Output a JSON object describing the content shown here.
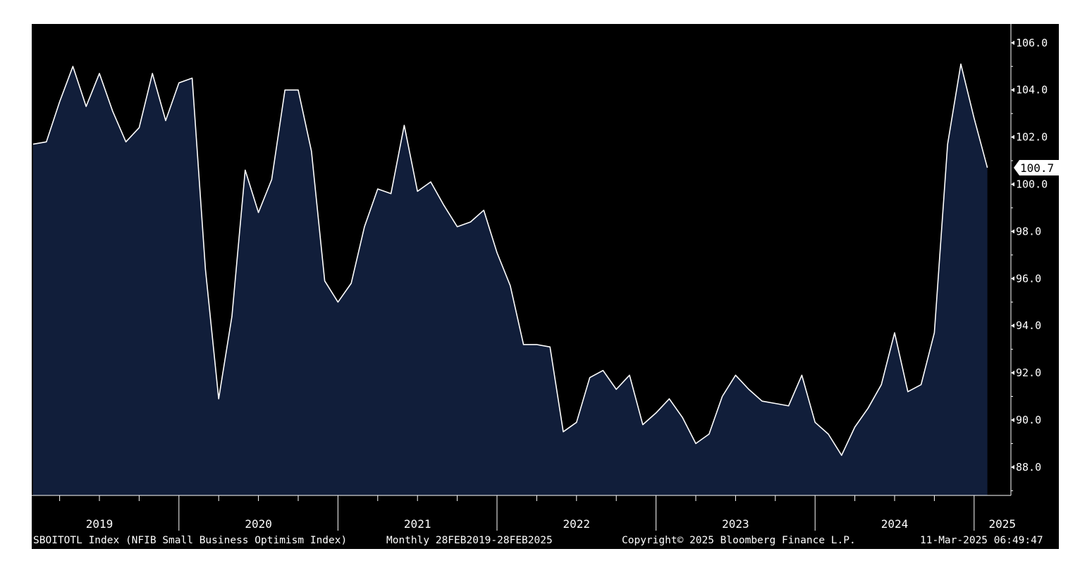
{
  "chart_data": {
    "type": "area",
    "x": [
      "2019-02",
      "2019-03",
      "2019-04",
      "2019-05",
      "2019-06",
      "2019-07",
      "2019-08",
      "2019-09",
      "2019-10",
      "2019-11",
      "2019-12",
      "2020-01",
      "2020-02",
      "2020-03",
      "2020-04",
      "2020-05",
      "2020-06",
      "2020-07",
      "2020-08",
      "2020-09",
      "2020-10",
      "2020-11",
      "2020-12",
      "2021-01",
      "2021-02",
      "2021-03",
      "2021-04",
      "2021-05",
      "2021-06",
      "2021-07",
      "2021-08",
      "2021-09",
      "2021-10",
      "2021-11",
      "2021-12",
      "2022-01",
      "2022-02",
      "2022-03",
      "2022-04",
      "2022-05",
      "2022-06",
      "2022-07",
      "2022-08",
      "2022-09",
      "2022-10",
      "2022-11",
      "2022-12",
      "2023-01",
      "2023-02",
      "2023-03",
      "2023-04",
      "2023-05",
      "2023-06",
      "2023-07",
      "2023-08",
      "2023-09",
      "2023-10",
      "2023-11",
      "2023-12",
      "2024-01",
      "2024-02",
      "2024-03",
      "2024-04",
      "2024-05",
      "2024-06",
      "2024-07",
      "2024-08",
      "2024-09",
      "2024-10",
      "2024-11",
      "2024-12",
      "2025-01",
      "2025-02"
    ],
    "values": [
      101.7,
      101.8,
      103.5,
      105.0,
      103.3,
      104.7,
      103.1,
      101.8,
      102.4,
      104.7,
      102.7,
      104.3,
      104.5,
      96.4,
      90.9,
      94.4,
      100.6,
      98.8,
      100.2,
      104.0,
      104.0,
      101.4,
      95.9,
      95.0,
      95.8,
      98.2,
      99.8,
      99.6,
      102.5,
      99.7,
      100.1,
      99.1,
      98.2,
      98.4,
      98.9,
      97.1,
      95.7,
      93.2,
      93.2,
      93.1,
      89.5,
      89.9,
      91.8,
      92.1,
      91.3,
      91.9,
      89.8,
      90.3,
      90.9,
      90.1,
      89.0,
      89.4,
      91.0,
      91.9,
      91.3,
      90.8,
      90.7,
      90.6,
      91.9,
      89.9,
      89.4,
      88.5,
      89.7,
      90.5,
      91.5,
      93.7,
      91.2,
      91.5,
      93.7,
      101.7,
      105.1,
      102.8,
      100.7
    ],
    "last_value_label": "100.7",
    "ylim": [
      86.8,
      106.8
    ],
    "yticks": [
      "106.0",
      "104.0",
      "102.0",
      "100.0",
      "98.0",
      "96.0",
      "94.0",
      "92.0",
      "90.0",
      "88.0"
    ],
    "ytick_values": [
      106,
      104,
      102,
      100,
      98,
      96,
      94,
      92,
      90,
      88
    ],
    "xtick_labels": [
      "2019",
      "2020",
      "2021",
      "2022",
      "2023",
      "2024",
      "2025"
    ],
    "y_axis_side": "right",
    "grid": false,
    "colors": {
      "background": "#000000",
      "plot_background": "#000000",
      "area_fill": "#111e3a",
      "line": "#ffffff",
      "text": "#ffffff",
      "axis": "#ffffff"
    }
  },
  "footer": {
    "ticker_description": "SBOITOTL Index (NFIB Small Business Optimism Index)",
    "frequency_range": "Monthly 28FEB2019-28FEB2025",
    "copyright": "Copyright© 2025 Bloomberg Finance L.P.",
    "timestamp": "11-Mar-2025 06:49:47"
  }
}
